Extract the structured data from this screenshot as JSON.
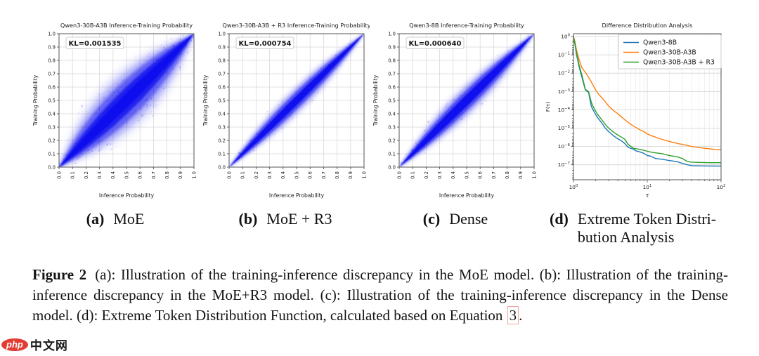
{
  "figure": {
    "subcaptions": [
      {
        "label": "(a)",
        "text": "MoE"
      },
      {
        "label": "(b)",
        "text": "MoE + R3"
      },
      {
        "label": "(c)",
        "text": "Dense"
      },
      {
        "label": "(d)",
        "line1": "Extreme Token Distri-",
        "line2": "bution Analysis"
      }
    ],
    "caption": {
      "tag": "Figure 2",
      "body": "(a): Illustration of the training-inference discrepancy in the MoE model. (b): Illustration of the training-inference discrepancy in the MoE+R3 model. (c): Illustration of the training-inference discrepancy in the Dense model. (d): Extreme Token Distribution Function, calculated based on Equation ",
      "equation_ref": "3",
      "suffix": "."
    }
  },
  "watermark": {
    "logo_text": "php",
    "site_text": "中文网",
    "logo_color": "#e23c33"
  },
  "chart_data": [
    {
      "type": "scatter",
      "title": "Qwen3-30B-A3B Inference-Training Probability",
      "xlabel": "Inference Probability",
      "ylabel": "Training Probability",
      "xlim": [
        0.0,
        1.0
      ],
      "ylim": [
        0.0,
        1.0
      ],
      "tick_labels": [
        "0.0",
        "0.1",
        "0.2",
        "0.3",
        "0.4",
        "0.5",
        "0.6",
        "0.7",
        "0.8",
        "0.9",
        "1.0"
      ],
      "annotation": "KL=0.001535",
      "point_color": "#0b0bee",
      "grid": true,
      "density_band": {
        "halfwidths": [
          0.145,
          0.115,
          0.085,
          0.052,
          0.028
        ],
        "opacities": [
          0.1,
          0.22,
          0.45,
          0.8,
          1.0
        ],
        "blurs": [
          5,
          3.5,
          2.2,
          1.2,
          0.6
        ]
      },
      "noise": {
        "count": 300,
        "max_offset": 0.2,
        "seed": 7
      },
      "description": "dense blue probability-density cloud along the diagonal y = x, wide spread"
    },
    {
      "type": "scatter",
      "title": "Qwen3-30B-A3B + R3 Inference-Training Probability",
      "xlabel": "Inference Probability",
      "ylabel": "Training Probability",
      "xlim": [
        0.0,
        1.0
      ],
      "ylim": [
        0.0,
        1.0
      ],
      "tick_labels": [
        "0.0",
        "0.1",
        "0.2",
        "0.3",
        "0.4",
        "0.5",
        "0.6",
        "0.7",
        "0.8",
        "0.9",
        "1.0"
      ],
      "annotation": "KL=0.000754",
      "point_color": "#0b0bee",
      "grid": true,
      "density_band": {
        "halfwidths": [
          0.062,
          0.046,
          0.033,
          0.018
        ],
        "opacities": [
          0.12,
          0.3,
          0.6,
          0.95
        ],
        "blurs": [
          3,
          2,
          1.2,
          0.6
        ]
      },
      "noise": {
        "count": 130,
        "max_offset": 0.09,
        "seed": 11
      },
      "description": "narrow blue probability-density lens along the diagonal y = x"
    },
    {
      "type": "scatter",
      "title": "Qwen3-8B Inference-Training Probability",
      "xlabel": "Inference Probability",
      "ylabel": "Training Probability",
      "xlim": [
        0.0,
        1.0
      ],
      "ylim": [
        0.0,
        1.0
      ],
      "tick_labels": [
        "0.0",
        "0.1",
        "0.2",
        "0.3",
        "0.4",
        "0.5",
        "0.6",
        "0.7",
        "0.8",
        "0.9",
        "1.0"
      ],
      "annotation": "KL=0.000640",
      "point_color": "#0b0bee",
      "grid": true,
      "density_band": {
        "halfwidths": [
          0.072,
          0.054,
          0.038,
          0.022
        ],
        "opacities": [
          0.12,
          0.3,
          0.62,
          0.95
        ],
        "blurs": [
          3.2,
          2.2,
          1.3,
          0.6
        ]
      },
      "noise": {
        "count": 150,
        "max_offset": 0.1,
        "seed": 13
      },
      "description": "narrow blue probability-density lens along the diagonal y = x"
    },
    {
      "type": "line",
      "title": "Difference Distribution Analysis",
      "xlabel": "τ",
      "ylabel": "F(τ)",
      "xscale": "log",
      "yscale": "log",
      "xlim": [
        1,
        100
      ],
      "ylim": [
        1e-08,
        1
      ],
      "xtick_exponents": [
        0,
        1,
        2
      ],
      "ytick_exponents": [
        0,
        -1,
        -2,
        -3,
        -4,
        -5,
        -6,
        -7
      ],
      "grid": true,
      "legend_position": "upper right",
      "series": [
        {
          "name": "Qwen3-8B",
          "color": "#1f77b4",
          "points": [
            [
              1,
              1
            ],
            [
              1.05,
              0.35
            ],
            [
              1.1,
              0.1
            ],
            [
              1.2,
              0.02
            ],
            [
              1.3,
              0.006
            ],
            [
              1.45,
              0.0012
            ],
            [
              1.6,
              0.0009
            ],
            [
              1.75,
              0.00015
            ],
            [
              1.9,
              8e-05
            ],
            [
              2.1,
              4e-05
            ],
            [
              2.4,
              2e-05
            ],
            [
              2.7,
              1e-05
            ],
            [
              3,
              6.5e-06
            ],
            [
              3.5,
              3.8e-06
            ],
            [
              4,
              2.6e-06
            ],
            [
              4.5,
              2e-06
            ],
            [
              5,
              1.4e-06
            ],
            [
              5.5,
              9e-07
            ],
            [
              6.5,
              7e-07
            ],
            [
              7,
              5.8e-07
            ],
            [
              8,
              5e-07
            ],
            [
              9,
              4.2e-07
            ],
            [
              10,
              3.2e-07
            ],
            [
              11,
              3e-07
            ],
            [
              13,
              2.2e-07
            ],
            [
              16,
              2e-07
            ],
            [
              20,
              1.7e-07
            ],
            [
              25,
              1.5e-07
            ],
            [
              30,
              1.2e-07
            ],
            [
              35,
              1e-07
            ],
            [
              40,
              9e-08
            ],
            [
              50,
              8.8e-08
            ],
            [
              70,
              8.6e-08
            ],
            [
              100,
              8.5e-08
            ]
          ]
        },
        {
          "name": "Qwen3-30B-A3B",
          "color": "#ff7f0e",
          "points": [
            [
              1,
              1
            ],
            [
              1.05,
              0.5
            ],
            [
              1.1,
              0.18
            ],
            [
              1.2,
              0.05
            ],
            [
              1.3,
              0.02
            ],
            [
              1.5,
              0.009
            ],
            [
              1.7,
              0.004
            ],
            [
              2,
              0.0012
            ],
            [
              2.2,
              0.0007
            ],
            [
              2.5,
              0.0004
            ],
            [
              3,
              0.00016
            ],
            [
              3.5,
              9e-05
            ],
            [
              4,
              6e-05
            ],
            [
              5,
              2.8e-05
            ],
            [
              6,
              1.6e-05
            ],
            [
              7,
              1.1e-05
            ],
            [
              8,
              8e-06
            ],
            [
              9,
              6.5e-06
            ],
            [
              10,
              4.8e-06
            ],
            [
              12,
              3.6e-06
            ],
            [
              15,
              2.6e-06
            ],
            [
              18,
              2.1e-06
            ],
            [
              22,
              1.7e-06
            ],
            [
              27,
              1.4e-06
            ],
            [
              33,
              1.2e-06
            ],
            [
              40,
              1e-06
            ],
            [
              50,
              8.8e-07
            ],
            [
              60,
              8e-07
            ],
            [
              80,
              7e-07
            ],
            [
              100,
              6.5e-07
            ]
          ]
        },
        {
          "name": "Qwen3-30B-A3B + R3",
          "color": "#2ca02c",
          "points": [
            [
              1,
              1
            ],
            [
              1.05,
              0.4
            ],
            [
              1.1,
              0.12
            ],
            [
              1.2,
              0.025
            ],
            [
              1.3,
              0.008
            ],
            [
              1.45,
              0.0013
            ],
            [
              1.6,
              0.001
            ],
            [
              1.75,
              0.00025
            ],
            [
              1.9,
              0.00012
            ],
            [
              2.1,
              6e-05
            ],
            [
              2.4,
              3e-05
            ],
            [
              2.7,
              1.6e-05
            ],
            [
              3,
              1e-05
            ],
            [
              3.5,
              6e-06
            ],
            [
              4,
              4.2e-06
            ],
            [
              4.5,
              3.2e-06
            ],
            [
              5,
              2.4e-06
            ],
            [
              5.5,
              1.3e-06
            ],
            [
              6.5,
              8e-07
            ],
            [
              7,
              7.5e-07
            ],
            [
              8,
              7e-07
            ],
            [
              9,
              6.2e-07
            ],
            [
              10,
              5.5e-07
            ],
            [
              11,
              5e-07
            ],
            [
              13,
              4.5e-07
            ],
            [
              16,
              4e-07
            ],
            [
              20,
              3.2e-07
            ],
            [
              25,
              2.8e-07
            ],
            [
              30,
              2.2e-07
            ],
            [
              35,
              1.5e-07
            ],
            [
              40,
              1.4e-07
            ],
            [
              50,
              1.35e-07
            ],
            [
              70,
              1.3e-07
            ],
            [
              100,
              1.3e-07
            ]
          ]
        }
      ]
    }
  ]
}
